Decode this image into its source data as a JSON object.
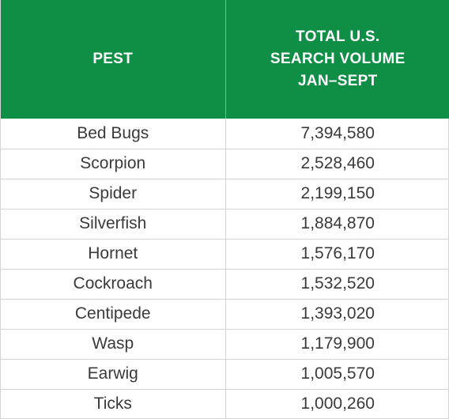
{
  "chart_data": {
    "type": "table",
    "columns": [
      "PEST",
      "TOTAL U.S. SEARCH VOLUME JAN–SEPT"
    ],
    "header_lines": [
      [
        "PEST"
      ],
      [
        "TOTAL U.S.",
        "SEARCH VOLUME",
        "JAN–SEPT"
      ]
    ],
    "rows": [
      [
        "Bed Bugs",
        "7,394,580"
      ],
      [
        "Scorpion",
        "2,528,460"
      ],
      [
        "Spider",
        "2,199,150"
      ],
      [
        "Silverfish",
        "1,884,870"
      ],
      [
        "Hornet",
        "1,576,170"
      ],
      [
        "Cockroach",
        "1,532,520"
      ],
      [
        "Centipede",
        "1,393,020"
      ],
      [
        "Wasp",
        "1,179,900"
      ],
      [
        "Earwig",
        "1,005,570"
      ],
      [
        "Ticks",
        "1,000,260"
      ]
    ],
    "header_color": "#0f8e46",
    "header_text_color": "#ffffff"
  }
}
